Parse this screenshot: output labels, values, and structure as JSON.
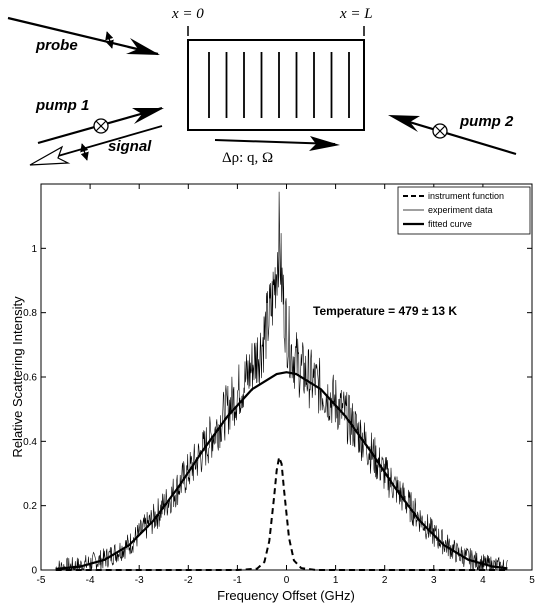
{
  "diagram": {
    "probe_label": "probe",
    "pump1_label": "pump 1",
    "signal_label": "signal",
    "pump2_label": "pump 2",
    "x0_label": "x = 0",
    "xL_label": "x = L",
    "momentum_label": "Δρ: q, Ω",
    "grating_lines": 9
  },
  "chart_data": {
    "type": "line",
    "xlabel": "Frequency Offset (GHz)",
    "ylabel": "Relative Scattering Intensity",
    "xlim": [
      -5,
      5
    ],
    "ylim": [
      0,
      1.2
    ],
    "xticks": [
      -5,
      -4,
      -3,
      -2,
      -1,
      0,
      1,
      2,
      3,
      4,
      5
    ],
    "yticks": [
      0,
      0.2,
      0.4,
      0.6,
      0.8,
      1
    ],
    "ytick_labels": [
      "0",
      "0.2",
      "0.4",
      "0.6",
      "0.8",
      "1"
    ],
    "legend_position": "top-right",
    "legend": [
      "instrument function",
      "experiment data",
      "fitted curve"
    ],
    "annotation": "Temperature = 479 ± 13 K",
    "series": [
      {
        "name": "fitted curve",
        "style": "solid-thick",
        "x": [
          -4.7,
          -4.2,
          -3.7,
          -3.2,
          -2.7,
          -2.2,
          -1.7,
          -1.2,
          -0.7,
          -0.2,
          0.0,
          0.2,
          0.7,
          1.2,
          1.7,
          2.2,
          2.7,
          3.2,
          3.7,
          4.2,
          4.5
        ],
        "values": [
          0.003,
          0.011,
          0.032,
          0.078,
          0.155,
          0.258,
          0.372,
          0.478,
          0.562,
          0.609,
          0.615,
          0.609,
          0.562,
          0.478,
          0.372,
          0.258,
          0.155,
          0.078,
          0.032,
          0.011,
          0.005
        ]
      },
      {
        "name": "instrument function",
        "style": "dashed",
        "x": [
          -4.7,
          -1.0,
          -0.6,
          -0.45,
          -0.35,
          -0.25,
          -0.2,
          -0.15,
          -0.1,
          -0.05,
          0.05,
          0.15,
          0.3,
          0.6,
          4.5
        ],
        "values": [
          0.0,
          0.0,
          0.004,
          0.025,
          0.09,
          0.23,
          0.31,
          0.35,
          0.33,
          0.25,
          0.1,
          0.03,
          0.006,
          0.0,
          0.0
        ]
      },
      {
        "name": "experiment data",
        "style": "thin-noisy",
        "x": [
          -4.7,
          -4.2,
          -3.7,
          -3.2,
          -2.7,
          -2.2,
          -1.7,
          -1.2,
          -0.8,
          -0.5,
          -0.3,
          -0.2,
          -0.15,
          -0.1,
          -0.05,
          0.0,
          0.1,
          0.3,
          0.6,
          1.0,
          1.5,
          2.0,
          2.5,
          3.0,
          3.5,
          4.0,
          4.5
        ],
        "values": [
          0.005,
          0.012,
          0.035,
          0.08,
          0.16,
          0.26,
          0.37,
          0.5,
          0.6,
          0.7,
          0.82,
          0.95,
          1.04,
          0.9,
          0.82,
          0.75,
          0.68,
          0.62,
          0.58,
          0.52,
          0.42,
          0.3,
          0.2,
          0.11,
          0.05,
          0.018,
          0.006
        ]
      }
    ]
  }
}
